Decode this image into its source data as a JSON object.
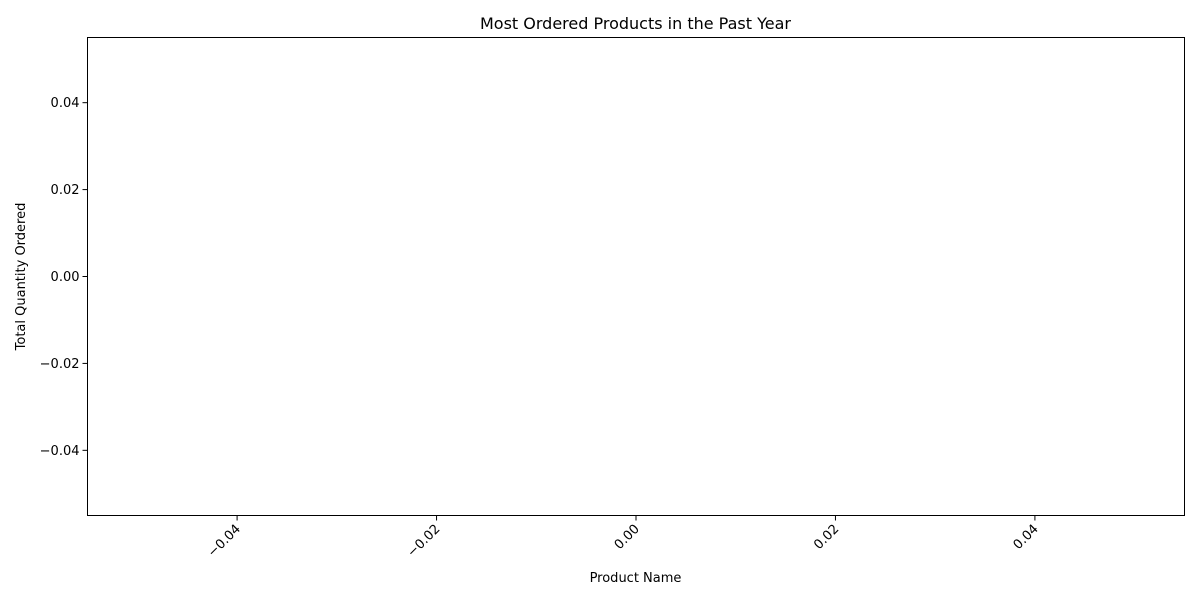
{
  "chart_data": {
    "type": "bar",
    "title": "Most Ordered Products in the Past Year",
    "xlabel": "Product Name",
    "ylabel": "Total Quantity Ordered",
    "categories": [],
    "values": [],
    "xlim": [
      -0.055,
      0.055
    ],
    "ylim": [
      -0.055,
      0.055
    ],
    "xticks": [
      -0.04,
      -0.02,
      0.0,
      0.02,
      0.04
    ],
    "xtick_labels": [
      "−0.04",
      "−0.02",
      "0.00",
      "0.02",
      "0.04"
    ],
    "yticks": [
      0.04,
      0.02,
      0.0,
      -0.02,
      -0.04
    ],
    "ytick_labels": [
      "0.04",
      "0.02",
      "0.00",
      "−0.02",
      "−0.04"
    ],
    "xtick_rotation": 45,
    "grid": false,
    "legend": null,
    "colors": {
      "axis": "#000000",
      "background": "#ffffff",
      "bar": "#1f77b4"
    }
  }
}
